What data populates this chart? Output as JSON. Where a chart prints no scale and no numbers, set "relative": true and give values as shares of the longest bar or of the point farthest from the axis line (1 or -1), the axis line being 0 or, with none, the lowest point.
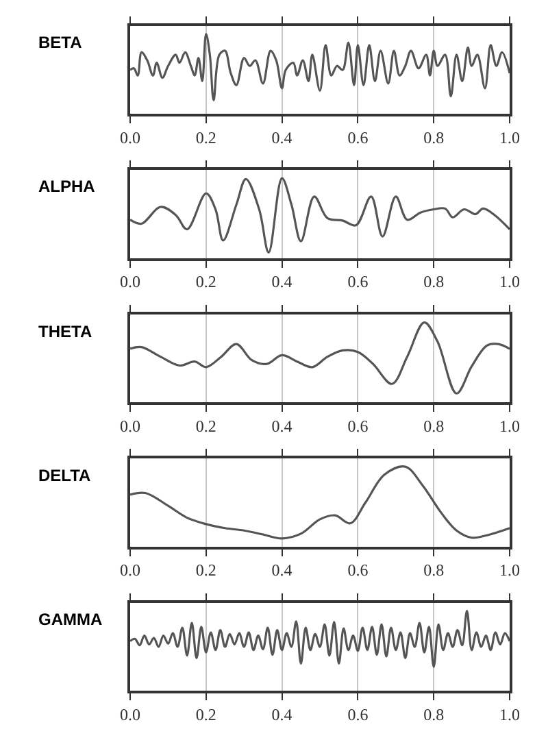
{
  "chart_data": [
    {
      "type": "line",
      "title": "BETA",
      "relative": true,
      "color": "#555555",
      "grid": "x",
      "xlim": [
        0,
        1
      ],
      "xticks": [
        {
          "value": 0,
          "label": "0.0"
        },
        {
          "value": 0.2,
          "label": "0.2"
        },
        {
          "value": 0.4,
          "label": "0.4"
        },
        {
          "value": 0.6,
          "label": "0.6"
        },
        {
          "value": 0.8,
          "label": "0.8"
        },
        {
          "value": 1,
          "label": "1.0"
        }
      ],
      "x": [
        0,
        0.01,
        0.02,
        0.03,
        0.045,
        0.06,
        0.07,
        0.085,
        0.1,
        0.12,
        0.13,
        0.145,
        0.16,
        0.17,
        0.18,
        0.19,
        0.2,
        0.21,
        0.22,
        0.235,
        0.25,
        0.265,
        0.28,
        0.3,
        0.315,
        0.33,
        0.35,
        0.37,
        0.385,
        0.4,
        0.41,
        0.43,
        0.44,
        0.455,
        0.47,
        0.48,
        0.5,
        0.515,
        0.53,
        0.545,
        0.56,
        0.575,
        0.59,
        0.6,
        0.615,
        0.63,
        0.645,
        0.66,
        0.68,
        0.695,
        0.71,
        0.725,
        0.74,
        0.76,
        0.78,
        0.79,
        0.8,
        0.81,
        0.83,
        0.845,
        0.86,
        0.875,
        0.89,
        0.9,
        0.915,
        0.935,
        0.95,
        0.965,
        0.98,
        1.0
      ],
      "values": [
        0.55,
        0.57,
        0.48,
        0.77,
        0.67,
        0.48,
        0.64,
        0.45,
        0.6,
        0.74,
        0.64,
        0.77,
        0.6,
        0.48,
        0.7,
        0.41,
        1,
        0.74,
        0.17,
        0.74,
        0.79,
        0.51,
        0.36,
        0.7,
        0.6,
        0.67,
        0.38,
        0.79,
        0.67,
        0.32,
        0.55,
        0.64,
        0.48,
        0.67,
        0.41,
        0.74,
        0.29,
        0.86,
        0.48,
        0.6,
        0.55,
        0.89,
        0.36,
        0.86,
        0.36,
        0.86,
        0.41,
        0.79,
        0.38,
        0.79,
        0.48,
        0.6,
        0.79,
        0.57,
        0.74,
        0.48,
        0.79,
        0.6,
        0.74,
        0.22,
        0.74,
        0.41,
        0.83,
        0.6,
        0.74,
        0.32,
        0.86,
        0.6,
        0.77,
        0.51
      ]
    },
    {
      "type": "line",
      "title": "ALPHA",
      "relative": true,
      "color": "#555555",
      "grid": "x",
      "xlim": [
        0,
        1
      ],
      "xticks": [
        {
          "value": 0,
          "label": "0.0"
        },
        {
          "value": 0.2,
          "label": "0.2"
        },
        {
          "value": 0.4,
          "label": "0.4"
        },
        {
          "value": 0.6,
          "label": "0.6"
        },
        {
          "value": 0.8,
          "label": "0.8"
        },
        {
          "value": 1,
          "label": "1.0"
        }
      ],
      "x": [
        0,
        0.03,
        0.08,
        0.12,
        0.15,
        0.2,
        0.225,
        0.245,
        0.28,
        0.305,
        0.34,
        0.365,
        0.4,
        0.425,
        0.45,
        0.485,
        0.52,
        0.56,
        0.595,
        0.635,
        0.665,
        0.7,
        0.73,
        0.765,
        0.8,
        0.83,
        0.85,
        0.88,
        0.91,
        0.93,
        0.96,
        1.0
      ],
      "values": [
        0.48,
        0.43,
        0.64,
        0.54,
        0.36,
        0.81,
        0.61,
        0.22,
        0.67,
        0.99,
        0.61,
        0.07,
        1,
        0.67,
        0.21,
        0.77,
        0.5,
        0.47,
        0.41,
        0.77,
        0.27,
        0.77,
        0.48,
        0.57,
        0.61,
        0.62,
        0.51,
        0.61,
        0.55,
        0.62,
        0.54,
        0.36
      ]
    },
    {
      "type": "line",
      "title": "THETA",
      "relative": true,
      "color": "#555555",
      "grid": "x",
      "xlim": [
        0,
        1
      ],
      "xticks": [
        {
          "value": 0,
          "label": "0.0"
        },
        {
          "value": 0.2,
          "label": "0.2"
        },
        {
          "value": 0.4,
          "label": "0.4"
        },
        {
          "value": 0.6,
          "label": "0.6"
        },
        {
          "value": 0.8,
          "label": "0.8"
        },
        {
          "value": 1,
          "label": "1.0"
        }
      ],
      "x": [
        0,
        0.03,
        0.08,
        0.13,
        0.17,
        0.2,
        0.24,
        0.28,
        0.32,
        0.36,
        0.4,
        0.44,
        0.48,
        0.52,
        0.56,
        0.6,
        0.64,
        0.69,
        0.73,
        0.775,
        0.81,
        0.86,
        0.9,
        0.94,
        0.97,
        1.0
      ],
      "values": [
        0.67,
        0.69,
        0.57,
        0.46,
        0.51,
        0.44,
        0.57,
        0.73,
        0.53,
        0.48,
        0.59,
        0.51,
        0.44,
        0.57,
        0.65,
        0.63,
        0.48,
        0.23,
        0.57,
        1,
        0.76,
        0.11,
        0.45,
        0.71,
        0.73,
        0.67
      ]
    },
    {
      "type": "line",
      "title": "DELTA",
      "relative": true,
      "color": "#555555",
      "grid": "x",
      "xlim": [
        0,
        1
      ],
      "xticks": [
        {
          "value": 0,
          "label": "0.0"
        },
        {
          "value": 0.2,
          "label": "0.2"
        },
        {
          "value": 0.4,
          "label": "0.4"
        },
        {
          "value": 0.6,
          "label": "0.6"
        },
        {
          "value": 0.8,
          "label": "0.8"
        },
        {
          "value": 1,
          "label": "1.0"
        }
      ],
      "x": [
        0,
        0.04,
        0.1,
        0.15,
        0.2,
        0.25,
        0.3,
        0.35,
        0.4,
        0.45,
        0.5,
        0.54,
        0.58,
        0.62,
        0.67,
        0.725,
        0.77,
        0.82,
        0.86,
        0.9,
        0.94,
        1.0
      ],
      "values": [
        0.65,
        0.67,
        0.51,
        0.36,
        0.28,
        0.23,
        0.2,
        0.15,
        0.1,
        0.16,
        0.34,
        0.39,
        0.29,
        0.55,
        0.9,
        1,
        0.77,
        0.42,
        0.2,
        0.11,
        0.14,
        0.23
      ]
    },
    {
      "type": "line",
      "title": "GAMMA",
      "relative": true,
      "color": "#555555",
      "grid": "x",
      "xlim": [
        0,
        1
      ],
      "xticks": [
        {
          "value": 0,
          "label": "0.0"
        },
        {
          "value": 0.2,
          "label": "0.2"
        },
        {
          "value": 0.4,
          "label": "0.4"
        },
        {
          "value": 0.6,
          "label": "0.6"
        },
        {
          "value": 0.8,
          "label": "0.8"
        },
        {
          "value": 1,
          "label": "1.0"
        }
      ],
      "x": [
        0,
        0.0125,
        0.025,
        0.0375,
        0.05,
        0.0625,
        0.075,
        0.0875,
        0.1,
        0.1125,
        0.125,
        0.1375,
        0.15,
        0.1625,
        0.175,
        0.1875,
        0.2,
        0.2125,
        0.225,
        0.2375,
        0.25,
        0.2625,
        0.275,
        0.2875,
        0.3,
        0.3125,
        0.325,
        0.3375,
        0.35,
        0.3625,
        0.375,
        0.3875,
        0.4,
        0.4125,
        0.425,
        0.4375,
        0.45,
        0.4625,
        0.475,
        0.4875,
        0.5,
        0.5125,
        0.525,
        0.5375,
        0.55,
        0.5625,
        0.575,
        0.5875,
        0.6,
        0.6125,
        0.625,
        0.6375,
        0.65,
        0.6625,
        0.675,
        0.6875,
        0.7,
        0.7125,
        0.725,
        0.7375,
        0.75,
        0.7625,
        0.775,
        0.7875,
        0.8,
        0.8125,
        0.825,
        0.8375,
        0.85,
        0.8625,
        0.875,
        0.8875,
        0.9,
        0.9125,
        0.925,
        0.9375,
        0.95,
        0.9625,
        0.975,
        0.9875,
        1.0
      ],
      "values": [
        0.62,
        0.65,
        0.57,
        0.69,
        0.58,
        0.66,
        0.55,
        0.69,
        0.59,
        0.72,
        0.55,
        0.79,
        0.44,
        0.85,
        0.41,
        0.8,
        0.48,
        0.73,
        0.51,
        0.76,
        0.55,
        0.71,
        0.58,
        0.72,
        0.55,
        0.73,
        0.51,
        0.69,
        0.52,
        0.79,
        0.45,
        0.76,
        0.51,
        0.72,
        0.55,
        0.87,
        0.34,
        0.79,
        0.51,
        0.71,
        0.55,
        0.83,
        0.44,
        0.86,
        0.34,
        0.78,
        0.51,
        0.69,
        0.5,
        0.79,
        0.51,
        0.8,
        0.45,
        0.83,
        0.43,
        0.79,
        0.51,
        0.73,
        0.41,
        0.72,
        0.55,
        0.85,
        0.48,
        0.8,
        0.3,
        0.83,
        0.51,
        0.72,
        0.55,
        0.76,
        0.57,
        1,
        0.51,
        0.73,
        0.55,
        0.69,
        0.51,
        0.73,
        0.58,
        0.72,
        0.62
      ]
    }
  ]
}
